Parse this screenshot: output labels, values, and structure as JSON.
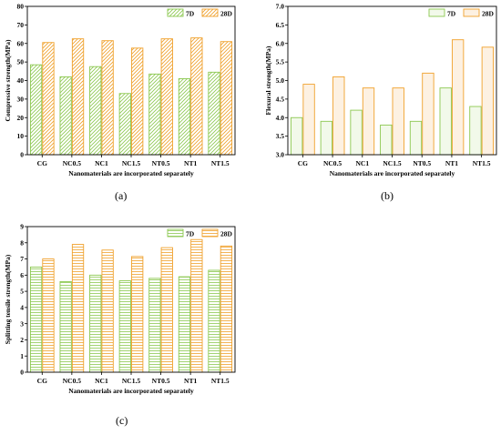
{
  "panel_labels": [
    "(a)",
    "(b)",
    "(c)"
  ],
  "colors": {
    "d7_stroke": "#8cc850",
    "d7_fill": "#f2f9ea",
    "d28_stroke": "#f0a12c",
    "d28_fill": "#fdf1e2",
    "axis": "#000000"
  },
  "chart_data": [
    {
      "type": "bar",
      "categories": [
        "CG",
        "NC0.5",
        "NC1",
        "NC1.5",
        "NT0.5",
        "NT1",
        "NT1.5"
      ],
      "series": [
        {
          "name": "7D",
          "values": [
            48.5,
            42.0,
            47.5,
            33.0,
            43.5,
            41.0,
            44.5
          ],
          "pattern": "diagonal"
        },
        {
          "name": "28D",
          "values": [
            60.5,
            62.5,
            61.5,
            57.5,
            62.5,
            63.0,
            61.0
          ],
          "pattern": "diagonal"
        }
      ],
      "xlabel": "Nanomaterials are incorporated separately",
      "ylabel": "Compressive strength(MPa)",
      "ylim": [
        0,
        80
      ],
      "yticks": [
        "0",
        "10",
        "20",
        "30",
        "40",
        "50",
        "60",
        "70",
        "80"
      ],
      "legend": "top-right",
      "grid": false
    },
    {
      "type": "bar",
      "categories": [
        "CG",
        "NC0.5",
        "NC1",
        "NC1.5",
        "NT0.5",
        "NT1",
        "NT1.5"
      ],
      "series": [
        {
          "name": "7D",
          "values": [
            4.0,
            3.9,
            4.2,
            3.8,
            3.9,
            4.8,
            4.3
          ],
          "pattern": "solid"
        },
        {
          "name": "28D",
          "values": [
            4.9,
            5.1,
            4.8,
            4.8,
            5.2,
            6.1,
            5.9
          ],
          "pattern": "solid"
        }
      ],
      "xlabel": "Nanomaterials are incorporated separately",
      "ylabel": "Flexural strength(MPa)",
      "ylim": [
        3.0,
        7.0
      ],
      "yticks": [
        "3.0",
        "3.5",
        "4.0",
        "4.5",
        "5.0",
        "5.5",
        "6.0",
        "6.5",
        "7.0"
      ],
      "legend": "top-right",
      "grid": false
    },
    {
      "type": "bar",
      "categories": [
        "CG",
        "NC0.5",
        "NC1",
        "NC1.5",
        "NT0.5",
        "NT1",
        "NT1.5"
      ],
      "series": [
        {
          "name": "7D",
          "values": [
            6.5,
            5.6,
            6.0,
            5.65,
            5.8,
            5.9,
            6.3
          ],
          "pattern": "horizontal"
        },
        {
          "name": "28D",
          "values": [
            7.0,
            7.9,
            7.55,
            7.15,
            7.7,
            8.2,
            7.8
          ],
          "pattern": "horizontal"
        }
      ],
      "xlabel": "Nanomaterials are incorporated separately",
      "ylabel": "Splitting tensile strength(MPa)",
      "ylim": [
        0,
        9
      ],
      "yticks": [
        "0",
        "1",
        "2",
        "3",
        "4",
        "5",
        "6",
        "7",
        "8",
        "9"
      ],
      "legend": "top-right",
      "grid": false
    }
  ]
}
